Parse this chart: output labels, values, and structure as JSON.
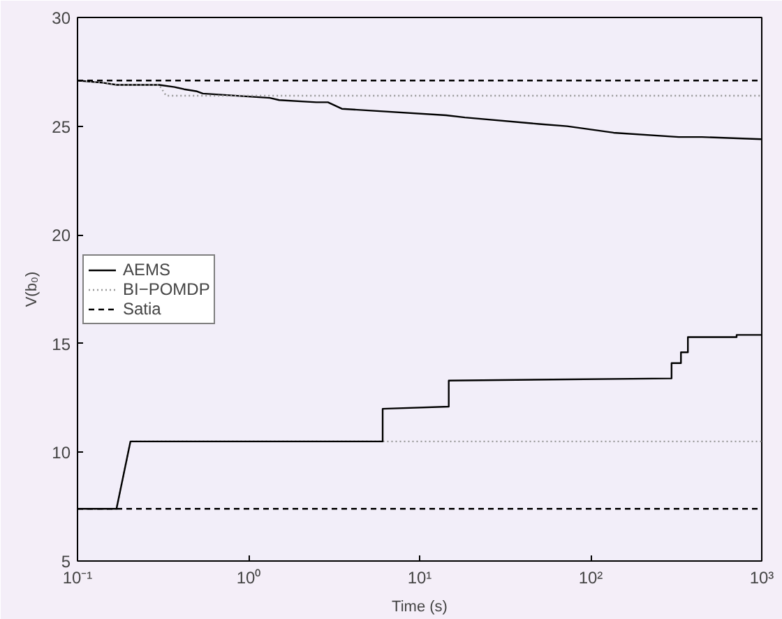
{
  "chart_data": {
    "type": "line",
    "xlabel": "Time (s)",
    "ylabel": "V(b₀)",
    "log": "x",
    "xlim": [
      0.1,
      1000
    ],
    "ylim": [
      5,
      30
    ],
    "xticks": [
      {
        "value": 0.1,
        "label": "10⁻¹"
      },
      {
        "value": 1,
        "label": "10⁰"
      },
      {
        "value": 10,
        "label": "10¹"
      },
      {
        "value": 100,
        "label": "10²"
      },
      {
        "value": 1000,
        "label": "10³"
      }
    ],
    "yticks": [
      5,
      10,
      15,
      20,
      25,
      30
    ],
    "grid": false,
    "legend": "left",
    "marker": "none",
    "series": [
      {
        "name": "AEMS",
        "color": "#000000",
        "line_style": "solid",
        "x": [
          0.1,
          0.14,
          0.17,
          0.3,
          0.37,
          0.42,
          0.5,
          0.54,
          1.33,
          1.51,
          2.49,
          2.91,
          3.51,
          14.3,
          18.4,
          50,
          72.8,
          136,
          327,
          447,
          1000
        ],
        "values": [
          27.1,
          27.0,
          26.9,
          26.9,
          26.8,
          26.7,
          26.6,
          26.5,
          26.3,
          26.2,
          26.1,
          26.1,
          25.8,
          25.5,
          25.4,
          25.1,
          25.0,
          24.7,
          24.5,
          24.5,
          24.4
        ]
      },
      {
        "name": "BI−POMDP",
        "color": "#999999",
        "line_style": "dotted",
        "x": [
          0.1,
          0.14,
          0.17,
          0.3,
          0.33,
          1000
        ],
        "values": [
          27.1,
          27.0,
          26.9,
          26.9,
          26.4,
          26.4
        ]
      },
      {
        "name": "Satia",
        "color": "#000000",
        "line_style": "dashed",
        "x": [
          0.1,
          1000
        ],
        "values": [
          27.1,
          27.1
        ]
      },
      {
        "color": "#999999",
        "line_style": "dotted",
        "x": [
          0.1,
          0.169,
          0.204,
          1000
        ],
        "values": [
          7.4,
          7.4,
          10.5,
          10.5
        ]
      },
      {
        "color": "#000000",
        "line_style": "dashed",
        "x": [
          0.1,
          1000
        ],
        "values": [
          7.4,
          7.4
        ]
      },
      {
        "color": "#000000",
        "line_style": "solid",
        "x": [
          0.1,
          0.169,
          0.204,
          6.08,
          6.08,
          14.8,
          14.8,
          297,
          297,
          337,
          337,
          370,
          370,
          713,
          713,
          1000
        ],
        "values": [
          7.4,
          7.4,
          10.5,
          10.5,
          12.0,
          12.1,
          13.3,
          13.4,
          14.1,
          14.1,
          14.6,
          14.6,
          15.3,
          15.3,
          15.4,
          15.4
        ]
      }
    ]
  }
}
